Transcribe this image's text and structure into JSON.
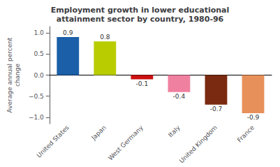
{
  "chart_data": {
    "type": "bar",
    "title": "Employment growth in lower educational\nattainment sector by country, 1980-96",
    "ylabel": "Average annual percent\nchange",
    "categories": [
      "United States",
      "Japan",
      "West Germany",
      "Italy",
      "United Kingdom",
      "France"
    ],
    "values": [
      0.9,
      0.8,
      -0.1,
      -0.4,
      -0.7,
      -0.9
    ],
    "colors": [
      "#1a5fa8",
      "#b8cc00",
      "#cc1111",
      "#f080a0",
      "#7a2a10",
      "#e8905a"
    ],
    "ylim": [
      -1.15,
      1.15
    ],
    "yticks": [
      {
        "value": -1.0,
        "label": "−1.0"
      },
      {
        "value": -0.5,
        "label": "−0.5"
      },
      {
        "value": 0.0,
        "label": "0.0"
      },
      {
        "value": 0.5,
        "label": "0.5"
      },
      {
        "value": 1.0,
        "label": "1.0"
      }
    ],
    "data_labels": true,
    "grid": false
  }
}
